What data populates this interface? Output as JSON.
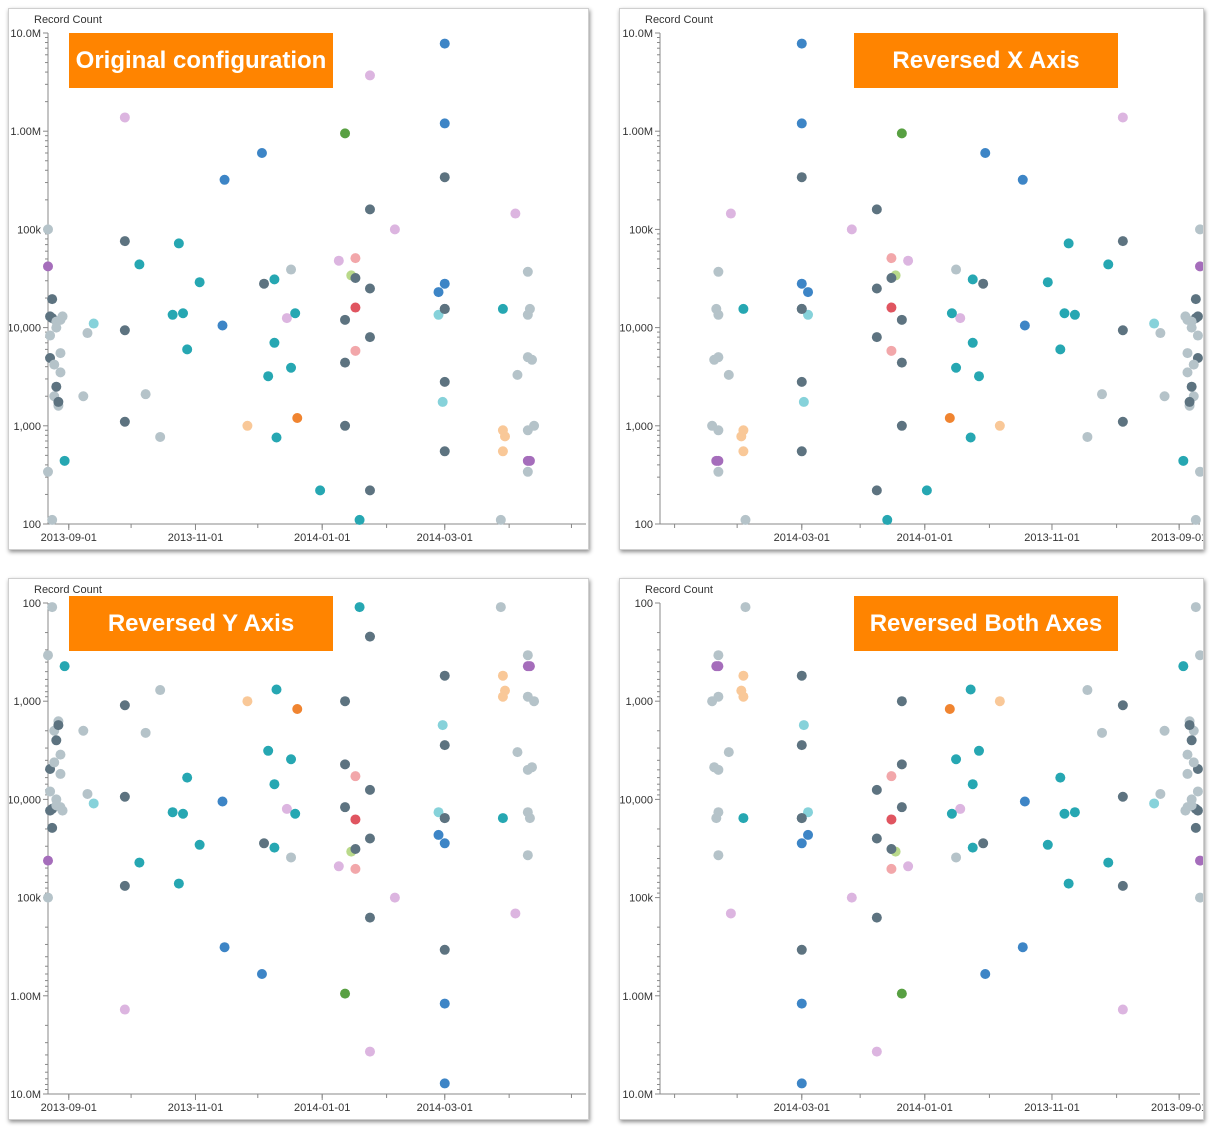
{
  "accent_color": "#ff8400",
  "colors": {
    "dark_slate": "#5d7380",
    "light_gray": "#b5c3c9",
    "teal": "#26a7b2",
    "blue": "#3d85c6",
    "lavender": "#dcb5e0",
    "orange": "#f08430",
    "peach": "#f9c898",
    "red": "#e05560",
    "pink": "#f2a7aa",
    "green": "#58a042",
    "lime": "#b9d98a",
    "light_cyan": "#86d2da",
    "purple": "#a56dbb"
  },
  "chart_data": [
    {
      "type": "scatter",
      "title": "Original configuration",
      "ylabel": "Record Count",
      "xlabel": "",
      "x_scale": "time",
      "y_scale": "log",
      "x_range": [
        "2013-08-22",
        "2014-05-08"
      ],
      "ylim": [
        100,
        10000000
      ],
      "x_reversed": false,
      "y_reversed": false,
      "x_ticks": [
        "2013-09-01",
        "2013-11-01",
        "2014-01-01",
        "2014-03-01"
      ],
      "y_ticks": [
        "100",
        "1,000",
        "10,000",
        "100k",
        "1.00M",
        "10.0M"
      ],
      "grid": false
    },
    {
      "type": "scatter",
      "title": "Reversed X Axis",
      "ylabel": "Record Count",
      "xlabel": "",
      "x_scale": "time",
      "y_scale": "log",
      "x_range": [
        "2013-08-22",
        "2014-05-08"
      ],
      "ylim": [
        100,
        10000000
      ],
      "x_reversed": true,
      "y_reversed": false,
      "x_ticks": [
        "2014-03-01",
        "2014-01-01",
        "2013-11-01",
        "2013-09-01"
      ],
      "y_ticks": [
        "100",
        "1,000",
        "10,000",
        "100k",
        "1.00M",
        "10.0M"
      ],
      "grid": false
    },
    {
      "type": "scatter",
      "title": "Reversed Y Axis",
      "ylabel": "Record Count",
      "xlabel": "",
      "x_scale": "time",
      "y_scale": "log",
      "x_range": [
        "2013-08-22",
        "2014-05-08"
      ],
      "ylim": [
        100,
        10000000
      ],
      "x_reversed": false,
      "y_reversed": true,
      "x_ticks": [
        "2013-09-01",
        "2013-11-01",
        "2014-01-01",
        "2014-03-01"
      ],
      "y_ticks": [
        "100",
        "1,000",
        "10,000",
        "100k",
        "1.00M",
        "10.0M"
      ],
      "grid": false
    },
    {
      "type": "scatter",
      "title": "Reversed Both Axes",
      "ylabel": "Record Count",
      "xlabel": "",
      "x_scale": "time",
      "y_scale": "log",
      "x_range": [
        "2013-08-22",
        "2014-05-08"
      ],
      "ylim": [
        100,
        10000000
      ],
      "x_reversed": true,
      "y_reversed": true,
      "x_ticks": [
        "2014-03-01",
        "2014-01-01",
        "2013-11-01",
        "2013-09-01"
      ],
      "y_ticks": [
        "100",
        "1,000",
        "10,000",
        "100k",
        "1.00M",
        "10.0M"
      ],
      "grid": false
    }
  ],
  "points": [
    {
      "date": "2013-08-22",
      "value": 100000,
      "color": "light_gray"
    },
    {
      "date": "2013-08-22",
      "value": 42000,
      "color": "purple"
    },
    {
      "date": "2013-08-22",
      "value": 340,
      "color": "light_gray"
    },
    {
      "date": "2013-08-23",
      "value": 13000,
      "color": "dark_slate"
    },
    {
      "date": "2013-08-23",
      "value": 8300,
      "color": "light_gray"
    },
    {
      "date": "2013-08-23",
      "value": 4900,
      "color": "dark_slate"
    },
    {
      "date": "2013-08-24",
      "value": 19500,
      "color": "dark_slate"
    },
    {
      "date": "2013-08-24",
      "value": 12500,
      "color": "dark_slate"
    },
    {
      "date": "2013-08-24",
      "value": 110,
      "color": "light_gray"
    },
    {
      "date": "2013-08-25",
      "value": 4200,
      "color": "light_gray"
    },
    {
      "date": "2013-08-25",
      "value": 2000,
      "color": "light_gray"
    },
    {
      "date": "2013-08-26",
      "value": 11500,
      "color": "light_gray"
    },
    {
      "date": "2013-08-26",
      "value": 10000,
      "color": "light_gray"
    },
    {
      "date": "2013-08-26",
      "value": 2500,
      "color": "dark_slate"
    },
    {
      "date": "2013-08-27",
      "value": 1600,
      "color": "light_gray"
    },
    {
      "date": "2013-08-27",
      "value": 1750,
      "color": "dark_slate"
    },
    {
      "date": "2013-08-28",
      "value": 12000,
      "color": "light_gray"
    },
    {
      "date": "2013-08-28",
      "value": 5500,
      "color": "light_gray"
    },
    {
      "date": "2013-08-28",
      "value": 3500,
      "color": "light_gray"
    },
    {
      "date": "2013-08-29",
      "value": 13000,
      "color": "light_gray"
    },
    {
      "date": "2013-08-30",
      "value": 440,
      "color": "teal"
    },
    {
      "date": "2013-09-08",
      "value": 2000,
      "color": "light_gray"
    },
    {
      "date": "2013-09-10",
      "value": 8800,
      "color": "light_gray"
    },
    {
      "date": "2013-09-13",
      "value": 11000,
      "color": "light_cyan"
    },
    {
      "date": "2013-09-28",
      "value": 1380000,
      "color": "lavender"
    },
    {
      "date": "2013-09-28",
      "value": 76000,
      "color": "dark_slate"
    },
    {
      "date": "2013-09-28",
      "value": 9400,
      "color": "dark_slate"
    },
    {
      "date": "2013-09-28",
      "value": 1100,
      "color": "dark_slate"
    },
    {
      "date": "2013-10-05",
      "value": 44000,
      "color": "teal"
    },
    {
      "date": "2013-10-08",
      "value": 2100,
      "color": "light_gray"
    },
    {
      "date": "2013-10-15",
      "value": 770,
      "color": "light_gray"
    },
    {
      "date": "2013-10-21",
      "value": 13500,
      "color": "teal"
    },
    {
      "date": "2013-10-24",
      "value": 72000,
      "color": "teal"
    },
    {
      "date": "2013-10-26",
      "value": 14000,
      "color": "teal"
    },
    {
      "date": "2013-10-28",
      "value": 6000,
      "color": "teal"
    },
    {
      "date": "2013-11-03",
      "value": 29000,
      "color": "teal"
    },
    {
      "date": "2013-11-14",
      "value": 10500,
      "color": "blue"
    },
    {
      "date": "2013-11-15",
      "value": 320000,
      "color": "blue"
    },
    {
      "date": "2013-11-26",
      "value": 1000,
      "color": "peach"
    },
    {
      "date": "2013-12-03",
      "value": 600000,
      "color": "blue"
    },
    {
      "date": "2013-12-04",
      "value": 28000,
      "color": "dark_slate"
    },
    {
      "date": "2013-12-06",
      "value": 3200,
      "color": "teal"
    },
    {
      "date": "2013-12-09",
      "value": 31000,
      "color": "teal"
    },
    {
      "date": "2013-12-09",
      "value": 7000,
      "color": "teal"
    },
    {
      "date": "2013-12-10",
      "value": 760,
      "color": "teal"
    },
    {
      "date": "2013-12-15",
      "value": 12500,
      "color": "lavender"
    },
    {
      "date": "2013-12-17",
      "value": 39000,
      "color": "light_gray"
    },
    {
      "date": "2013-12-17",
      "value": 3900,
      "color": "teal"
    },
    {
      "date": "2013-12-19",
      "value": 14000,
      "color": "teal"
    },
    {
      "date": "2013-12-20",
      "value": 1200,
      "color": "orange"
    },
    {
      "date": "2013-12-31",
      "value": 220,
      "color": "teal"
    },
    {
      "date": "2014-01-09",
      "value": 48000,
      "color": "lavender"
    },
    {
      "date": "2014-01-12",
      "value": 950000,
      "color": "green"
    },
    {
      "date": "2014-01-12",
      "value": 12000,
      "color": "dark_slate"
    },
    {
      "date": "2014-01-12",
      "value": 4400,
      "color": "dark_slate"
    },
    {
      "date": "2014-01-12",
      "value": 1000,
      "color": "dark_slate"
    },
    {
      "date": "2014-01-15",
      "value": 34000,
      "color": "lime"
    },
    {
      "date": "2014-01-17",
      "value": 51000,
      "color": "pink"
    },
    {
      "date": "2014-01-17",
      "value": 32000,
      "color": "dark_slate"
    },
    {
      "date": "2014-01-17",
      "value": 16000,
      "color": "red"
    },
    {
      "date": "2014-01-17",
      "value": 5800,
      "color": "pink"
    },
    {
      "date": "2014-01-19",
      "value": 110,
      "color": "teal"
    },
    {
      "date": "2014-01-24",
      "value": 160000,
      "color": "dark_slate"
    },
    {
      "date": "2014-01-24",
      "value": 25000,
      "color": "dark_slate"
    },
    {
      "date": "2014-01-24",
      "value": 8000,
      "color": "dark_slate"
    },
    {
      "date": "2014-01-24",
      "value": 220,
      "color": "dark_slate"
    },
    {
      "date": "2014-01-24",
      "value": 3700000,
      "color": "lavender"
    },
    {
      "date": "2014-02-05",
      "value": 100000,
      "color": "lavender"
    },
    {
      "date": "2014-02-26",
      "value": 23000,
      "color": "blue"
    },
    {
      "date": "2014-02-26",
      "value": 13500,
      "color": "light_cyan"
    },
    {
      "date": "2014-02-28",
      "value": 1750,
      "color": "light_cyan"
    },
    {
      "date": "2014-03-01",
      "value": 7800000,
      "color": "blue"
    },
    {
      "date": "2014-03-01",
      "value": 1200000,
      "color": "blue"
    },
    {
      "date": "2014-03-01",
      "value": 340000,
      "color": "dark_slate"
    },
    {
      "date": "2014-03-01",
      "value": 28000,
      "color": "blue"
    },
    {
      "date": "2014-03-01",
      "value": 15500,
      "color": "dark_slate"
    },
    {
      "date": "2014-03-01",
      "value": 15500,
      "color": "dark_slate"
    },
    {
      "date": "2014-03-01",
      "value": 2800,
      "color": "dark_slate"
    },
    {
      "date": "2014-03-01",
      "value": 550,
      "color": "dark_slate"
    },
    {
      "date": "2014-03-28",
      "value": 110,
      "color": "light_gray"
    },
    {
      "date": "2014-03-29",
      "value": 15500,
      "color": "teal"
    },
    {
      "date": "2014-03-29",
      "value": 900,
      "color": "peach"
    },
    {
      "date": "2014-03-29",
      "value": 550,
      "color": "peach"
    },
    {
      "date": "2014-03-30",
      "value": 780,
      "color": "peach"
    },
    {
      "date": "2014-04-04",
      "value": 145000,
      "color": "lavender"
    },
    {
      "date": "2014-04-05",
      "value": 3300,
      "color": "light_gray"
    },
    {
      "date": "2014-04-10",
      "value": 37000,
      "color": "light_gray"
    },
    {
      "date": "2014-04-10",
      "value": 13500,
      "color": "light_gray"
    },
    {
      "date": "2014-04-10",
      "value": 5000,
      "color": "light_gray"
    },
    {
      "date": "2014-04-10",
      "value": 900,
      "color": "light_gray"
    },
    {
      "date": "2014-04-10",
      "value": 440,
      "color": "purple"
    },
    {
      "date": "2014-04-10",
      "value": 340,
      "color": "light_gray"
    },
    {
      "date": "2014-04-11",
      "value": 15500,
      "color": "light_gray"
    },
    {
      "date": "2014-04-11",
      "value": 440,
      "color": "purple"
    },
    {
      "date": "2014-04-12",
      "value": 4700,
      "color": "light_gray"
    },
    {
      "date": "2014-04-13",
      "value": 1000,
      "color": "light_gray"
    }
  ]
}
